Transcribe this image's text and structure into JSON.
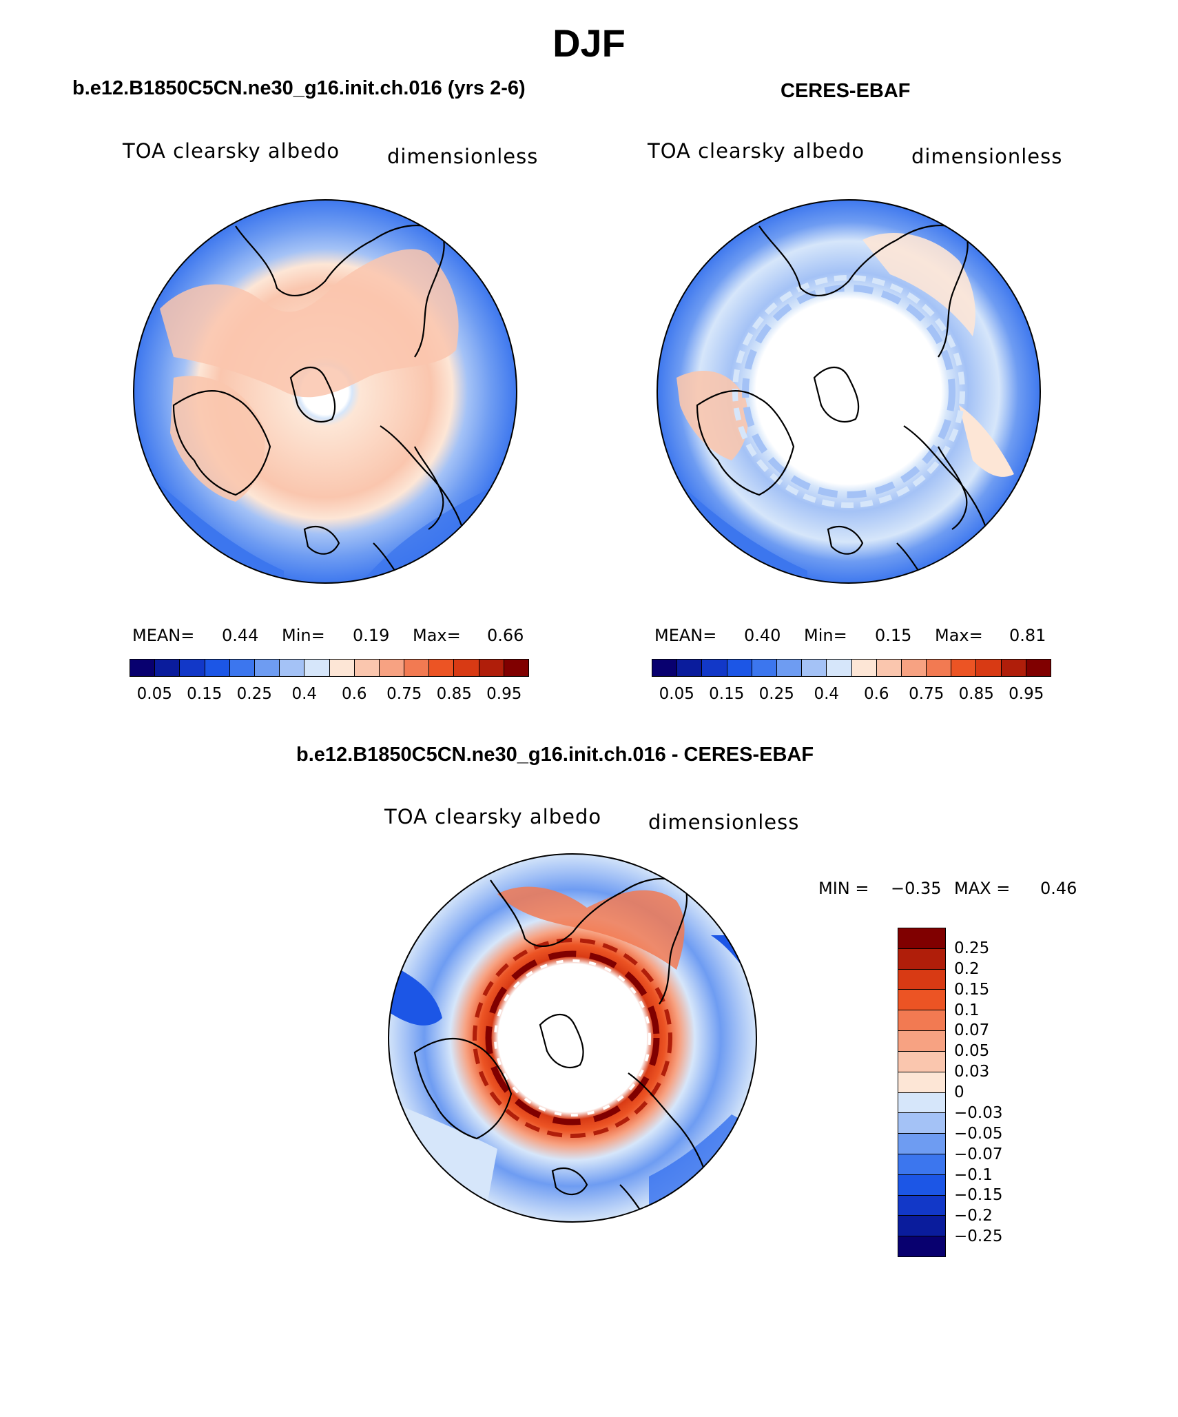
{
  "figure": {
    "season": "DJF",
    "difference_title": "b.e12.B1850C5CN.ne30_g16.init.ch.016 - CERES-EBAF"
  },
  "panels": [
    {
      "case_title": "b.e12.B1850C5CN.ne30_g16.init.ch.016 (yrs 2-6)",
      "variable": "TOA clearsky albedo",
      "units": "dimensionless",
      "mean_label": "MEAN=",
      "mean": "0.44",
      "min_label": "Min=",
      "min": "0.19",
      "max_label": "Max=",
      "max": "0.66"
    },
    {
      "case_title": "CERES-EBAF",
      "variable": "TOA clearsky albedo",
      "units": "dimensionless",
      "mean_label": "MEAN=",
      "mean": "0.40",
      "min_label": "Min=",
      "min": "0.15",
      "max_label": "Max=",
      "max": "0.81"
    }
  ],
  "diff_panel": {
    "variable": "TOA clearsky albedo",
    "units": "dimensionless",
    "min_label": "MIN =",
    "min": "−0.35",
    "max_label": "MAX =",
    "max": "0.46"
  },
  "abs_colorbar": {
    "tick_labels": [
      "0.05",
      "0.15",
      "0.25",
      "0.4",
      "0.6",
      "0.75",
      "0.85",
      "0.95"
    ],
    "colors": [
      "#08006f",
      "#0a1c9c",
      "#1238c8",
      "#1c56e6",
      "#3c76ee",
      "#6e9cf2",
      "#a4c2f6",
      "#d6e6fa",
      "#fde6d6",
      "#fac6ae",
      "#f7a282",
      "#f27a52",
      "#ec5424",
      "#d83a14",
      "#b01e0a",
      "#800000"
    ]
  },
  "diff_colorbar": {
    "tick_labels": [
      "0.25",
      "0.2",
      "0.15",
      "0.1",
      "0.07",
      "0.05",
      "0.03",
      "0",
      "−0.03",
      "−0.05",
      "−0.07",
      "−0.1",
      "−0.15",
      "−0.2",
      "−0.25"
    ],
    "colors": [
      "#800000",
      "#b01e0a",
      "#d83a14",
      "#ec5424",
      "#f27a52",
      "#f7a282",
      "#fac6ae",
      "#fde6d6",
      "#d6e6fa",
      "#a4c2f6",
      "#6e9cf2",
      "#3c76ee",
      "#1c56e6",
      "#1238c8",
      "#0a1c9c",
      "#08006f"
    ]
  }
}
